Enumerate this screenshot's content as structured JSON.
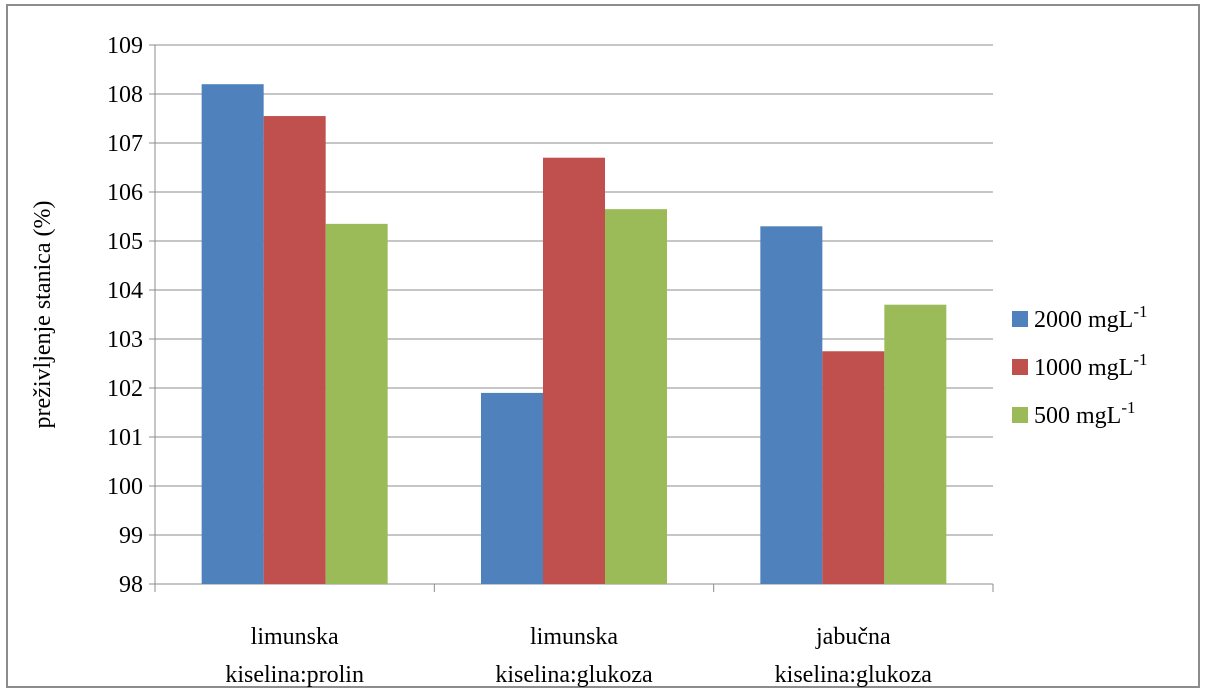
{
  "chart_data": {
    "type": "bar",
    "title": "",
    "xlabel": "",
    "ylabel": "preživljenje stanica (%)",
    "ylim": [
      98,
      109
    ],
    "yticks": [
      98,
      99,
      100,
      101,
      102,
      103,
      104,
      105,
      106,
      107,
      108,
      109
    ],
    "grid": true,
    "legend_position": "right",
    "categories": [
      [
        "limunska",
        "kiselina:prolin"
      ],
      [
        "limunska",
        "kiselina:glukoza"
      ],
      [
        "jabučna",
        "kiselina:glukoza"
      ]
    ],
    "series": [
      {
        "name": "2000 mgL",
        "sup": "-1",
        "color": "#4f81bd",
        "values": [
          108.2,
          101.9,
          105.3
        ]
      },
      {
        "name": "1000 mgL",
        "sup": "-1",
        "color": "#c0504d",
        "values": [
          107.55,
          106.7,
          102.75
        ]
      },
      {
        "name": "500 mgL",
        "sup": "-1",
        "color": "#9bbb59",
        "values": [
          105.35,
          105.65,
          103.7
        ]
      }
    ]
  }
}
